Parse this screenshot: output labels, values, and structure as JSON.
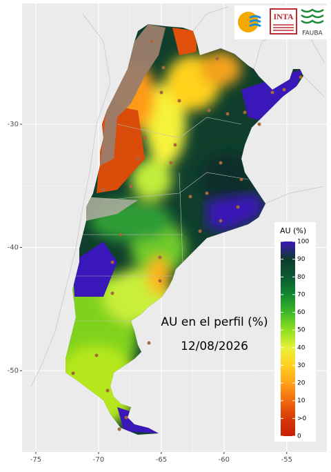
{
  "logos": {
    "inta": "INTA",
    "fauba": "FAUBA"
  },
  "annotation": {
    "title": "AU en el perfil (%)",
    "date": "12/08/2026"
  },
  "map": {
    "xlim": [
      -76.1,
      -51.8
    ],
    "ylim": [
      -56.6,
      -20.2
    ],
    "xticks": [
      -75,
      -70,
      -65,
      -60,
      -55
    ],
    "yticks": [
      -30,
      -40,
      -50
    ],
    "grid": true
  },
  "legend": {
    "title": "AU (%)",
    "labels": [
      100,
      90,
      80,
      70,
      60,
      50,
      40,
      30,
      20,
      10,
      ">0",
      0
    ],
    "colors": [
      "#3a17b8",
      "#0f3a2c",
      "#0b5a33",
      "#12872f",
      "#3fb82a",
      "#8fe01e",
      "#e8f03a",
      "#ffd21f",
      "#ffa21a",
      "#f06a0f",
      "#d63a08",
      "#c81e05"
    ]
  }
}
